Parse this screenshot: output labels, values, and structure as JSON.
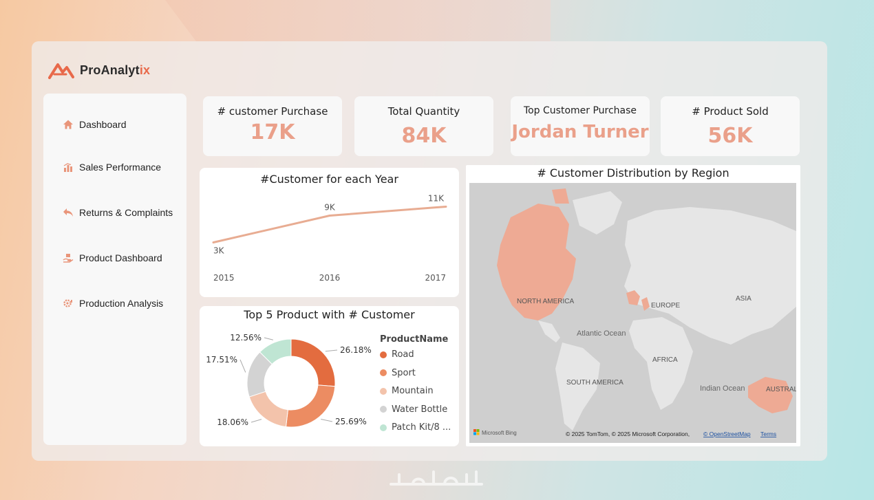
{
  "brand": {
    "name_main": "ProAnalyt",
    "name_accent": "ix",
    "accent_color": "#e8694a"
  },
  "sidebar": {
    "items": [
      {
        "label": "Dashboard",
        "icon": "home-icon"
      },
      {
        "label": "Sales Performance",
        "icon": "bar-chart-icon"
      },
      {
        "label": "Returns & Complaints",
        "icon": "return-arrow-icon"
      },
      {
        "label": "Product Dashboard",
        "icon": "product-hand-icon"
      },
      {
        "label": "Production Analysis",
        "icon": "gear-analysis-icon"
      }
    ]
  },
  "kpis": [
    {
      "title": "# customer Purchase",
      "value": "17K"
    },
    {
      "title": "Total Quantity",
      "value": "84K"
    },
    {
      "title": "Top Customer Purchase",
      "value": "Jordan Turner"
    },
    {
      "title": "# Product Sold",
      "value": "56K"
    }
  ],
  "line_chart": {
    "title": "#Customer for each Year"
  },
  "donut_chart": {
    "title": "Top 5 Product with # Customer",
    "legend_title": "ProductName"
  },
  "map": {
    "title": "# Customer Distribution by Region",
    "labels": {
      "north_america": "NORTH AMERICA",
      "europe": "EUROPE",
      "asia": "ASIA",
      "africa": "AFRICA",
      "south_america": "SOUTH AMERICA",
      "australia": "AUSTRAL",
      "atlantic": "Atlantic Ocean",
      "indian": "Indian Ocean"
    },
    "attribution": "© 2025 TomTom, © 2025 Microsoft Corporation,",
    "osm_link": "© OpenStreetMap",
    "terms_link": "Terms",
    "bing_logo": "Microsoft Bing"
  },
  "colors": {
    "accent": "#eaa08a",
    "map_highlight": "#eeaa94",
    "map_land": "#e6e6e6",
    "map_water": "#cfcfcf"
  },
  "chart_data": [
    {
      "type": "line",
      "title": "#Customer for each Year",
      "x": [
        "2015",
        "2016",
        "2017"
      ],
      "series": [
        {
          "values": [
            3,
            9,
            11
          ],
          "labels": [
            "3K",
            "9K",
            "11K"
          ],
          "color": "#e8ac92"
        }
      ],
      "ylim": [
        0,
        12
      ]
    },
    {
      "type": "pie",
      "donut": true,
      "title": "Top 5 Product with # Customer",
      "legend": "right",
      "categories": [
        "Road",
        "Sport",
        "Mountain",
        "Water Bottle",
        "Patch Kit/8 ..."
      ],
      "values": [
        26.18,
        25.69,
        18.06,
        17.51,
        12.56
      ],
      "labels": [
        "26.18%",
        "25.69%",
        "18.06%",
        "17.51%",
        "12.56%"
      ],
      "colors": [
        "#e36c3f",
        "#ec8c62",
        "#f3c3ab",
        "#d3d3d3",
        "#bfe5d3"
      ]
    }
  ]
}
